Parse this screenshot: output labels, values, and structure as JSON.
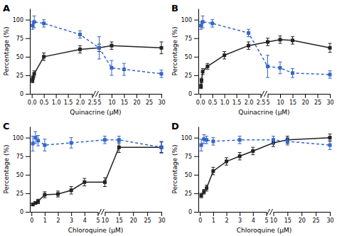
{
  "chart_data": [
    {
      "type": "line",
      "title": "A",
      "xlabel": "Quinacrine (μM)",
      "ylabel": "Percentage (%)",
      "xlim": [
        [
          -0.08,
          2.5
        ],
        [
          5,
          30
        ]
      ],
      "xticks": [
        {
          "value": 0.0,
          "label": "0.0"
        },
        0.5,
        {
          "value": 1.0,
          "label": "1.0"
        },
        1.5,
        {
          "value": 2.0,
          "label": "2.0"
        },
        2.5,
        5,
        10,
        15,
        20,
        25,
        30
      ],
      "ylim": [
        0,
        115
      ],
      "yticks": [
        0,
        25,
        50,
        75,
        100
      ],
      "series": [
        {
          "color": "#222222",
          "marker": "square",
          "line_style": "solid",
          "x": [
            0.03,
            0.05,
            0.1,
            0.5,
            2.0,
            5,
            10,
            30
          ],
          "values": [
            18,
            22,
            27,
            50,
            60,
            62,
            65,
            62
          ],
          "errors": [
            3,
            2,
            4,
            5,
            5,
            5,
            5,
            8
          ]
        },
        {
          "color": "#3366CC",
          "marker": "square",
          "line_style": "dashed",
          "x": [
            0.03,
            0.1,
            0.5,
            2.0,
            5,
            10,
            15,
            30
          ],
          "values": [
            92,
            97,
            95,
            80,
            62,
            35,
            33,
            27
          ],
          "errors": [
            5,
            8,
            5,
            5,
            15,
            10,
            8,
            5
          ]
        }
      ]
    },
    {
      "type": "line",
      "title": "B",
      "xlabel": "Quinacrine (μM)",
      "ylabel": "Percentage (%)",
      "xlim": [
        [
          -0.08,
          2.5
        ],
        [
          5,
          30
        ]
      ],
      "xticks": [
        {
          "value": 0.0,
          "label": "0.0"
        },
        0.5,
        {
          "value": 1.0,
          "label": "1.0"
        },
        1.5,
        {
          "value": 2.0,
          "label": "2.0"
        },
        2.5,
        5,
        10,
        15,
        20,
        25,
        30
      ],
      "ylim": [
        0,
        115
      ],
      "yticks": [
        0,
        25,
        50,
        75,
        100
      ],
      "series": [
        {
          "color": "#222222",
          "marker": "square",
          "line_style": "solid",
          "x": [
            0.03,
            0.05,
            0.1,
            0.3,
            1.0,
            2.0,
            5,
            10,
            15,
            30
          ],
          "values": [
            10,
            18,
            30,
            37,
            52,
            65,
            70,
            73,
            72,
            62
          ],
          "errors": [
            3,
            3,
            4,
            4,
            5,
            5,
            5,
            5,
            5,
            6
          ]
        },
        {
          "color": "#3366CC",
          "marker": "square",
          "line_style": "dashed",
          "x": [
            0.03,
            0.1,
            0.5,
            2.0,
            5,
            10,
            15,
            30
          ],
          "values": [
            92,
            97,
            95,
            82,
            37,
            35,
            28,
            26
          ],
          "errors": [
            5,
            8,
            5,
            5,
            15,
            8,
            6,
            5
          ]
        }
      ]
    },
    {
      "type": "line",
      "title": "C",
      "xlabel": "Chloroquine (μM)",
      "ylabel": "Percentage (%)",
      "xlim": [
        [
          -0.12,
          5
        ],
        [
          10,
          30
        ]
      ],
      "xticks": [
        0,
        1,
        2,
        3,
        4,
        5,
        10,
        15,
        20,
        25,
        30
      ],
      "ylim": [
        0,
        115
      ],
      "yticks": [
        0,
        25,
        50,
        75,
        100
      ],
      "series": [
        {
          "color": "#222222",
          "marker": "square",
          "line_style": "solid",
          "x": [
            0.1,
            0.3,
            0.5,
            1.0,
            2.0,
            3.0,
            4.0,
            10,
            15,
            30
          ],
          "values": [
            10,
            12,
            14,
            23,
            24,
            29,
            40,
            40,
            87,
            87
          ],
          "errors": [
            2,
            2,
            3,
            4,
            4,
            5,
            5,
            6,
            7,
            7
          ]
        },
        {
          "color": "#3366CC",
          "marker": "square",
          "line_style": "dashed",
          "x": [
            0.1,
            0.3,
            0.5,
            1.0,
            3.0,
            10,
            15,
            30
          ],
          "values": [
            92,
            100,
            96,
            90,
            93,
            97,
            97,
            87
          ],
          "errors": [
            10,
            8,
            7,
            8,
            7,
            5,
            5,
            8
          ]
        }
      ]
    },
    {
      "type": "line",
      "title": "D",
      "xlabel": "Chloroquine (μM)",
      "ylabel": "Percentage (%)",
      "xlim": [
        [
          -0.12,
          5
        ],
        [
          10,
          30
        ]
      ],
      "xticks": [
        0,
        1,
        2,
        3,
        4,
        5,
        10,
        15,
        20,
        25,
        30
      ],
      "ylim": [
        0,
        115
      ],
      "yticks": [
        0,
        25,
        50,
        75,
        100
      ],
      "series": [
        {
          "color": "#222222",
          "marker": "square",
          "line_style": "solid",
          "x": [
            0.1,
            0.3,
            0.5,
            1.0,
            2.0,
            3.0,
            4.0,
            10,
            15,
            30
          ],
          "values": [
            22,
            27,
            32,
            55,
            68,
            75,
            82,
            93,
            97,
            100
          ],
          "errors": [
            3,
            3,
            4,
            5,
            5,
            5,
            5,
            5,
            5,
            5
          ]
        },
        {
          "color": "#3366CC",
          "marker": "square",
          "line_style": "dashed",
          "x": [
            0.1,
            0.3,
            0.5,
            1.0,
            3.0,
            10,
            15,
            30
          ],
          "values": [
            90,
            98,
            97,
            95,
            97,
            97,
            95,
            90
          ],
          "errors": [
            8,
            6,
            5,
            5,
            5,
            5,
            5,
            6
          ]
        }
      ]
    }
  ]
}
